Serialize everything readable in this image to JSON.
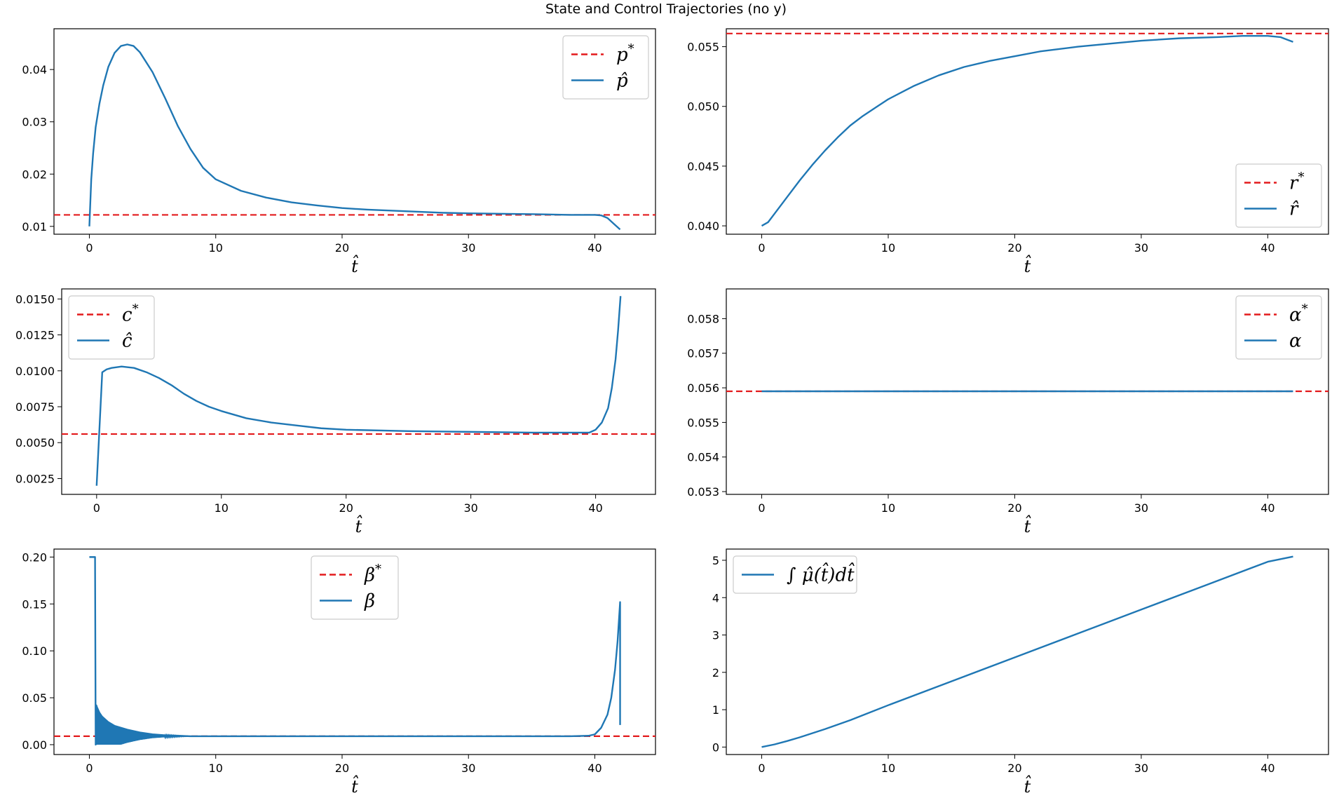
{
  "figure_title": "State and Control Trajectories (no y)",
  "colors": {
    "model": "#1f77b4",
    "target": "#e31a1c",
    "axis": "#000000"
  },
  "chart_data": [
    {
      "type": "line",
      "panel": "p",
      "xlabel": "t̂",
      "xlim": [
        -2.8,
        44.8
      ],
      "ylim": [
        0.0085,
        0.0478
      ],
      "xticks": [
        0,
        10,
        20,
        30,
        40
      ],
      "yticks": [
        0.01,
        0.02,
        0.03,
        0.04
      ],
      "ytick_labels": [
        "0.01",
        "0.02",
        "0.03",
        "0.04"
      ],
      "legend_position": "top-right",
      "series": [
        {
          "name": "p*",
          "label_main": "p",
          "label_sup": "*",
          "style": "dashed",
          "color": "#e31a1c",
          "hline": 0.0122
        },
        {
          "name": "p̂",
          "label_main": "p̂",
          "style": "solid",
          "color": "#1f77b4",
          "x": [
            0,
            0.15,
            0.3,
            0.5,
            0.8,
            1.1,
            1.5,
            2.0,
            2.5,
            3.0,
            3.5,
            4.0,
            5.0,
            6.0,
            7.0,
            8.0,
            9.0,
            10,
            12,
            14,
            16,
            18,
            20,
            22,
            25,
            28,
            30,
            33,
            36,
            38,
            40,
            40.5,
            41,
            41.5,
            42
          ],
          "y": [
            0.01,
            0.019,
            0.024,
            0.029,
            0.0335,
            0.037,
            0.0405,
            0.0432,
            0.0445,
            0.0448,
            0.0445,
            0.0433,
            0.0395,
            0.0345,
            0.0292,
            0.0248,
            0.0212,
            0.019,
            0.0168,
            0.0155,
            0.0146,
            0.014,
            0.0135,
            0.0132,
            0.0129,
            0.0126,
            0.0125,
            0.0124,
            0.0123,
            0.0122,
            0.0122,
            0.0121,
            0.0116,
            0.0105,
            0.0094
          ]
        }
      ]
    },
    {
      "type": "line",
      "panel": "r",
      "xlabel": "t̂",
      "xlim": [
        -2.8,
        44.8
      ],
      "ylim": [
        0.0393,
        0.0565
      ],
      "xticks": [
        0,
        10,
        20,
        30,
        40
      ],
      "yticks": [
        0.04,
        0.045,
        0.05,
        0.055
      ],
      "ytick_labels": [
        "0.040",
        "0.045",
        "0.050",
        "0.055"
      ],
      "legend_position": "bottom-right",
      "series": [
        {
          "name": "r*",
          "label_main": "r",
          "label_sup": "*",
          "style": "dashed",
          "color": "#e31a1c",
          "hline": 0.0561
        },
        {
          "name": "r̂",
          "label_main": "r̂",
          "style": "solid",
          "color": "#1f77b4",
          "x": [
            0,
            0.5,
            1,
            2,
            3,
            4,
            5,
            6,
            7,
            8,
            9,
            10,
            12,
            14,
            16,
            18,
            20,
            22,
            25,
            28,
            30,
            33,
            36,
            38,
            40,
            41,
            41.5,
            42
          ],
          "y": [
            0.04,
            0.0403,
            0.041,
            0.0424,
            0.0438,
            0.0451,
            0.0463,
            0.0474,
            0.0484,
            0.0492,
            0.0499,
            0.0506,
            0.0517,
            0.0526,
            0.0533,
            0.0538,
            0.0542,
            0.0546,
            0.055,
            0.0553,
            0.0555,
            0.0557,
            0.0558,
            0.0559,
            0.0559,
            0.0558,
            0.0556,
            0.0554
          ]
        }
      ]
    },
    {
      "type": "line",
      "panel": "c",
      "xlabel": "t̂",
      "xlim": [
        -2.8,
        44.8
      ],
      "ylim": [
        0.0014,
        0.0157
      ],
      "xticks": [
        0,
        10,
        20,
        30,
        40
      ],
      "yticks": [
        0.0025,
        0.005,
        0.0075,
        0.01,
        0.0125,
        0.015
      ],
      "ytick_labels": [
        "0.0025",
        "0.0050",
        "0.0075",
        "0.0100",
        "0.0125",
        "0.0150"
      ],
      "legend_position": "top-left",
      "series": [
        {
          "name": "c*",
          "label_main": "c",
          "label_sup": "*",
          "style": "dashed",
          "color": "#e31a1c",
          "hline": 0.0056
        },
        {
          "name": "ĉ",
          "label_main": "ĉ",
          "style": "solid",
          "color": "#1f77b4",
          "x": [
            0,
            0.45,
            0.8,
            1.2,
            2,
            3,
            4,
            5,
            6,
            7,
            8,
            9,
            10,
            12,
            14,
            16,
            18,
            20,
            25,
            30,
            35,
            38,
            39.5,
            40,
            40.5,
            41,
            41.3,
            41.6,
            41.8,
            42
          ],
          "y": [
            0.002,
            0.0099,
            0.0101,
            0.0102,
            0.0103,
            0.0102,
            0.0099,
            0.0095,
            0.009,
            0.0084,
            0.0079,
            0.0075,
            0.0072,
            0.0067,
            0.0064,
            0.0062,
            0.006,
            0.0059,
            0.0058,
            0.00575,
            0.0057,
            0.0057,
            0.0057,
            0.0059,
            0.0064,
            0.0074,
            0.0088,
            0.0108,
            0.0128,
            0.0152
          ]
        }
      ]
    },
    {
      "type": "line",
      "panel": "alpha",
      "xlabel": "t̂",
      "xlim": [
        -2.8,
        44.8
      ],
      "ylim": [
        0.05292,
        0.05886
      ],
      "xticks": [
        0,
        10,
        20,
        30,
        40
      ],
      "yticks": [
        0.053,
        0.054,
        0.055,
        0.056,
        0.057,
        0.058
      ],
      "ytick_labels": [
        "0.053",
        "0.054",
        "0.055",
        "0.056",
        "0.057",
        "0.058"
      ],
      "legend_position": "top-right",
      "series": [
        {
          "name": "α*",
          "label_main": "α",
          "label_sup": "*",
          "style": "dashed",
          "color": "#e31a1c",
          "hline": 0.0559
        },
        {
          "name": "α",
          "label_main": "α",
          "style": "solid",
          "color": "#1f77b4",
          "x": [
            0,
            42
          ],
          "y": [
            0.0559,
            0.0559
          ]
        }
      ]
    },
    {
      "type": "line",
      "panel": "beta",
      "xlabel": "t̂",
      "xlim": [
        -2.8,
        44.8
      ],
      "ylim": [
        -0.0105,
        0.2085
      ],
      "xticks": [
        0,
        10,
        20,
        30,
        40
      ],
      "yticks": [
        0.0,
        0.05,
        0.1,
        0.15,
        0.2
      ],
      "ytick_labels": [
        "0.00",
        "0.05",
        "0.10",
        "0.15",
        "0.20"
      ],
      "legend_position": "top-center",
      "series": [
        {
          "name": "β*",
          "label_main": "β",
          "label_sup": "*",
          "style": "dashed",
          "color": "#e31a1c",
          "hline": 0.009
        },
        {
          "name": "β",
          "label_main": "β",
          "style": "solid",
          "color": "#1f77b4",
          "x": [
            0,
            0.45,
            0.5,
            0.55,
            0.6,
            0.8,
            1.0,
            1.5,
            2.0,
            3.0,
            4.0,
            5.0,
            6.0,
            7.0,
            8.0,
            10,
            15,
            20,
            25,
            30,
            35,
            38,
            39.5,
            40,
            40.5,
            41,
            41.3,
            41.6,
            41.8,
            42,
            42
          ],
          "y": [
            0.2,
            0.2,
            0.0,
            0.042,
            0.04,
            0.034,
            0.03,
            0.024,
            0.02,
            0.016,
            0.013,
            0.011,
            0.01,
            0.0095,
            0.009,
            0.009,
            0.009,
            0.009,
            0.009,
            0.009,
            0.009,
            0.009,
            0.0095,
            0.011,
            0.018,
            0.032,
            0.05,
            0.08,
            0.11,
            0.152,
            0.021
          ],
          "oscillation_region": [
            0.5,
            8.0
          ]
        }
      ]
    },
    {
      "type": "line",
      "panel": "mu",
      "xlabel": "t̂",
      "xlim": [
        -2.8,
        44.8
      ],
      "ylim": [
        -0.2,
        5.3
      ],
      "xticks": [
        0,
        10,
        20,
        30,
        40
      ],
      "yticks": [
        0,
        1,
        2,
        3,
        4,
        5
      ],
      "ytick_labels": [
        "0",
        "1",
        "2",
        "3",
        "4",
        "5"
      ],
      "legend_position": "top-left",
      "series": [
        {
          "name": "∫μ̂(t̂)dt̂",
          "label_main": "∫ μ̂(t̂)dt̂",
          "style": "solid",
          "color": "#1f77b4",
          "x": [
            0,
            1,
            2,
            3,
            4,
            5,
            7,
            10,
            15,
            20,
            25,
            30,
            35,
            40,
            42
          ],
          "y": [
            0.0,
            0.07,
            0.16,
            0.26,
            0.37,
            0.48,
            0.72,
            1.12,
            1.76,
            2.4,
            3.04,
            3.68,
            4.32,
            4.96,
            5.1
          ]
        }
      ]
    }
  ]
}
